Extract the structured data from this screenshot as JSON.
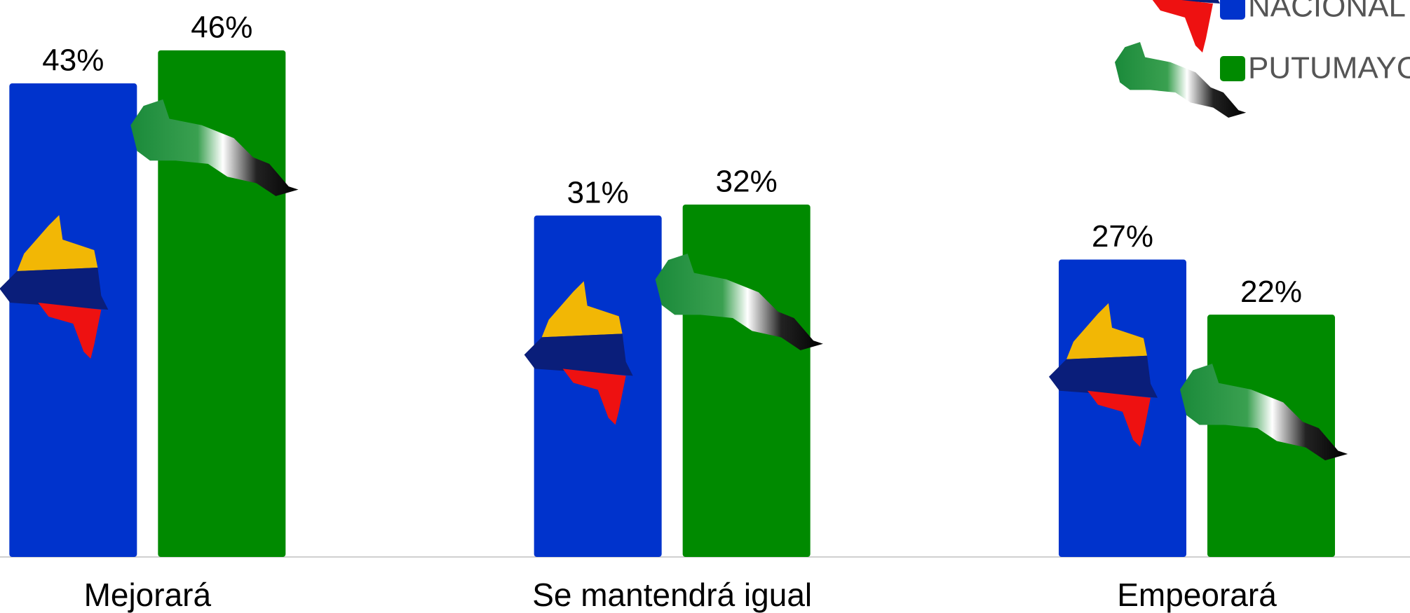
{
  "chart_data": {
    "type": "bar",
    "categories": [
      "Mejorará",
      "Se mantendrá igual",
      "Empeorará"
    ],
    "series": [
      {
        "name": "NACIONAL",
        "color": "#0033cc",
        "values": [
          43,
          31,
          27
        ],
        "value_labels": [
          "43%",
          "31%",
          "27%"
        ]
      },
      {
        "name": "PUTUMAYO",
        "color": "#008a00",
        "values": [
          46,
          32,
          22
        ],
        "value_labels": [
          "46%",
          "32%",
          "22%"
        ]
      }
    ],
    "ylim": [
      0,
      50
    ]
  }
}
